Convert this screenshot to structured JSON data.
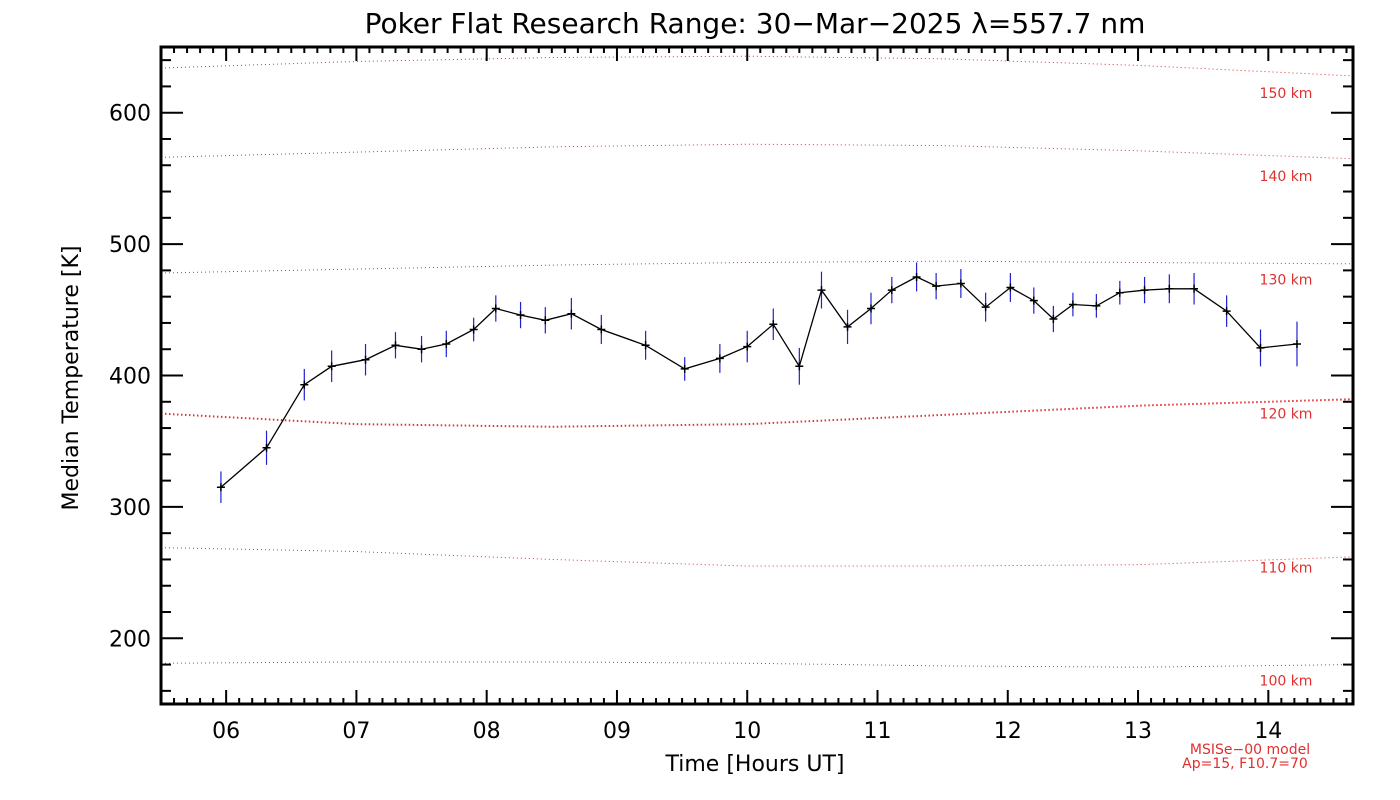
{
  "chart_data": {
    "type": "line",
    "title": "Poker Flat Research Range: 30−Mar−2025 λ=557.7 nm",
    "xlabel": "Time [Hours UT]",
    "ylabel": "Median Temperature [K]",
    "xlim": [
      5.5,
      14.65
    ],
    "ylim": [
      150,
      650
    ],
    "x_ticks": [
      6,
      7,
      8,
      9,
      10,
      11,
      12,
      13,
      14
    ],
    "x_tick_labels": [
      "06",
      "07",
      "08",
      "09",
      "10",
      "11",
      "12",
      "13",
      "14"
    ],
    "y_ticks": [
      200,
      300,
      400,
      500,
      600
    ],
    "y_tick_labels": [
      "200",
      "300",
      "400",
      "500",
      "600"
    ],
    "grid": false,
    "series": [
      {
        "color": "#000000",
        "error_color": "#2020d0",
        "points": [
          {
            "x": 5.96,
            "y": 315,
            "err": 12
          },
          {
            "x": 6.31,
            "y": 345,
            "err": 13
          },
          {
            "x": 6.6,
            "y": 393,
            "err": 12
          },
          {
            "x": 6.81,
            "y": 407,
            "err": 12
          },
          {
            "x": 7.07,
            "y": 412,
            "err": 12
          },
          {
            "x": 7.3,
            "y": 423,
            "err": 10
          },
          {
            "x": 7.5,
            "y": 420,
            "err": 10
          },
          {
            "x": 7.69,
            "y": 424,
            "err": 10
          },
          {
            "x": 7.9,
            "y": 435,
            "err": 9
          },
          {
            "x": 8.07,
            "y": 451,
            "err": 10
          },
          {
            "x": 8.26,
            "y": 446,
            "err": 10
          },
          {
            "x": 8.45,
            "y": 442,
            "err": 10
          },
          {
            "x": 8.65,
            "y": 447,
            "err": 12
          },
          {
            "x": 8.88,
            "y": 435,
            "err": 11
          },
          {
            "x": 9.22,
            "y": 423,
            "err": 11
          },
          {
            "x": 9.52,
            "y": 405,
            "err": 9
          },
          {
            "x": 9.79,
            "y": 413,
            "err": 11
          },
          {
            "x": 10.0,
            "y": 422,
            "err": 12
          },
          {
            "x": 10.2,
            "y": 439,
            "err": 12
          },
          {
            "x": 10.4,
            "y": 407,
            "err": 14
          },
          {
            "x": 10.57,
            "y": 465,
            "err": 14
          },
          {
            "x": 10.77,
            "y": 437,
            "err": 13
          },
          {
            "x": 10.95,
            "y": 451,
            "err": 12
          },
          {
            "x": 11.11,
            "y": 465,
            "err": 10
          },
          {
            "x": 11.3,
            "y": 475,
            "err": 11
          },
          {
            "x": 11.45,
            "y": 468,
            "err": 10
          },
          {
            "x": 11.64,
            "y": 470,
            "err": 11
          },
          {
            "x": 11.83,
            "y": 452,
            "err": 11
          },
          {
            "x": 12.02,
            "y": 467,
            "err": 11
          },
          {
            "x": 12.2,
            "y": 457,
            "err": 10
          },
          {
            "x": 12.35,
            "y": 443,
            "err": 10
          },
          {
            "x": 12.5,
            "y": 454,
            "err": 9
          },
          {
            "x": 12.68,
            "y": 453,
            "err": 9
          },
          {
            "x": 12.86,
            "y": 463,
            "err": 9
          },
          {
            "x": 13.05,
            "y": 465,
            "err": 10
          },
          {
            "x": 13.24,
            "y": 466,
            "err": 11
          },
          {
            "x": 13.43,
            "y": 466,
            "err": 12
          },
          {
            "x": 13.68,
            "y": 449,
            "err": 12
          },
          {
            "x": 13.94,
            "y": 421,
            "err": 14
          },
          {
            "x": 14.22,
            "y": 424,
            "err": 17
          }
        ]
      }
    ],
    "reference_curves": [
      {
        "label": "100 km",
        "x": [
          5.5,
          7.0,
          8.5,
          10.0,
          11.5,
          13.0,
          14.65
        ],
        "y": [
          181,
          182,
          182,
          181,
          179,
          178,
          180
        ],
        "color": "#e03030",
        "label_value": 168
      },
      {
        "label": "110 km",
        "x": [
          5.5,
          7.0,
          8.5,
          10.0,
          11.5,
          13.0,
          14.65
        ],
        "y": [
          269,
          266,
          260,
          255,
          255,
          256,
          262
        ],
        "color": "#e03030",
        "label_value": 254
      },
      {
        "label": "120 km",
        "x": [
          5.5,
          7.0,
          8.5,
          10.0,
          11.5,
          13.0,
          14.65
        ],
        "y": [
          371,
          363,
          361,
          363,
          370,
          377,
          382
        ],
        "color": "#e03030",
        "label_value": 371,
        "emphasized": true
      },
      {
        "label": "130 km",
        "x": [
          5.5,
          7.0,
          8.5,
          10.0,
          11.5,
          13.0,
          14.65
        ],
        "y": [
          478,
          481,
          484,
          486,
          487,
          486,
          485
        ],
        "color": "#e03030",
        "label_value": 473
      },
      {
        "label": "140 km",
        "x": [
          5.5,
          7.0,
          8.5,
          10.0,
          11.5,
          13.0,
          14.65
        ],
        "y": [
          566,
          570,
          574,
          576,
          575,
          571,
          565
        ],
        "color": "#e03030",
        "label_value": 552
      },
      {
        "label": "150 km",
        "x": [
          5.5,
          7.0,
          8.5,
          10.0,
          11.5,
          13.0,
          14.65
        ],
        "y": [
          634,
          639,
          642,
          643,
          641,
          636,
          628
        ],
        "color": "#e03030",
        "label_value": 615
      }
    ],
    "model_note": [
      "MSISe−00 model",
      "Ap=15, F10.7=70"
    ],
    "colors": {
      "line": "#000000",
      "error_bars": "#2020d0",
      "reference": "#e03030"
    }
  }
}
